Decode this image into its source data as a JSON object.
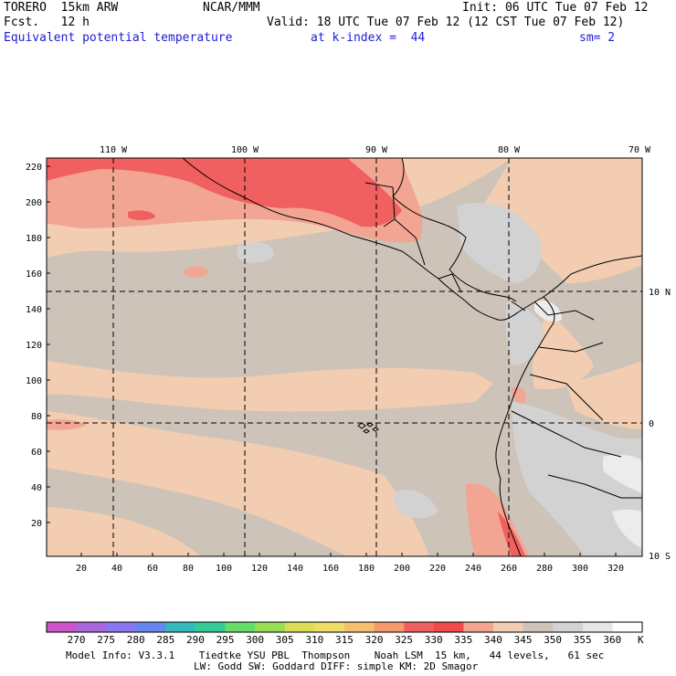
{
  "header": {
    "model": "TORERO  15km ARW",
    "org": "NCAR/MMM",
    "init": "Init: 06 UTC Tue 07 Feb 12",
    "fcst": "Fcst.   12 h",
    "valid": "Valid: 18 UTC Tue 07 Feb 12 (12 CST Tue 07 Feb 12)",
    "field": "Equivalent potential temperature",
    "level": "at k-index =  44",
    "smooth": "sm= 2"
  },
  "map": {
    "top_lon_labels": [
      "110 W",
      "100 W",
      "90 W",
      "80 W",
      "70 W"
    ],
    "right_lat_labels": [
      "10 N",
      "0",
      "10 S"
    ],
    "left_y_ticks": [
      "220",
      "200",
      "180",
      "160",
      "140",
      "120",
      "100",
      "80",
      "60",
      "40",
      "20"
    ],
    "bottom_x_ticks": [
      "20",
      "40",
      "60",
      "80",
      "100",
      "120",
      "140",
      "160",
      "180",
      "200",
      "220",
      "240",
      "260",
      "280",
      "300",
      "320"
    ],
    "dominant_band": "345-350 K"
  },
  "colorbar": {
    "unit": "K",
    "labels": [
      "270",
      "275",
      "280",
      "285",
      "290",
      "295",
      "300",
      "305",
      "310",
      "315",
      "320",
      "325",
      "330",
      "335",
      "340",
      "345",
      "350",
      "355",
      "360"
    ],
    "colors": [
      "#cc55cc",
      "#aa66dd",
      "#8877ee",
      "#6688ee",
      "#33bbbb",
      "#33cc99",
      "#66dd66",
      "#99dd55",
      "#dddd55",
      "#eedd66",
      "#f7c070",
      "#f59a6a",
      "#f06060",
      "#f04a4a",
      "#f2a592",
      "#f2cdb1",
      "#cec3b8",
      "#d2d2d2",
      "#e6e6e6",
      "#ffffff"
    ]
  },
  "footer": {
    "line1": "Model Info: V3.3.1    Tiedtke YSU PBL  Thompson    Noah LSM  15 km,   44 levels,   61 sec",
    "line2": "LW: Godd SW: Goddard DIFF: simple KM: 2D Smagor"
  }
}
